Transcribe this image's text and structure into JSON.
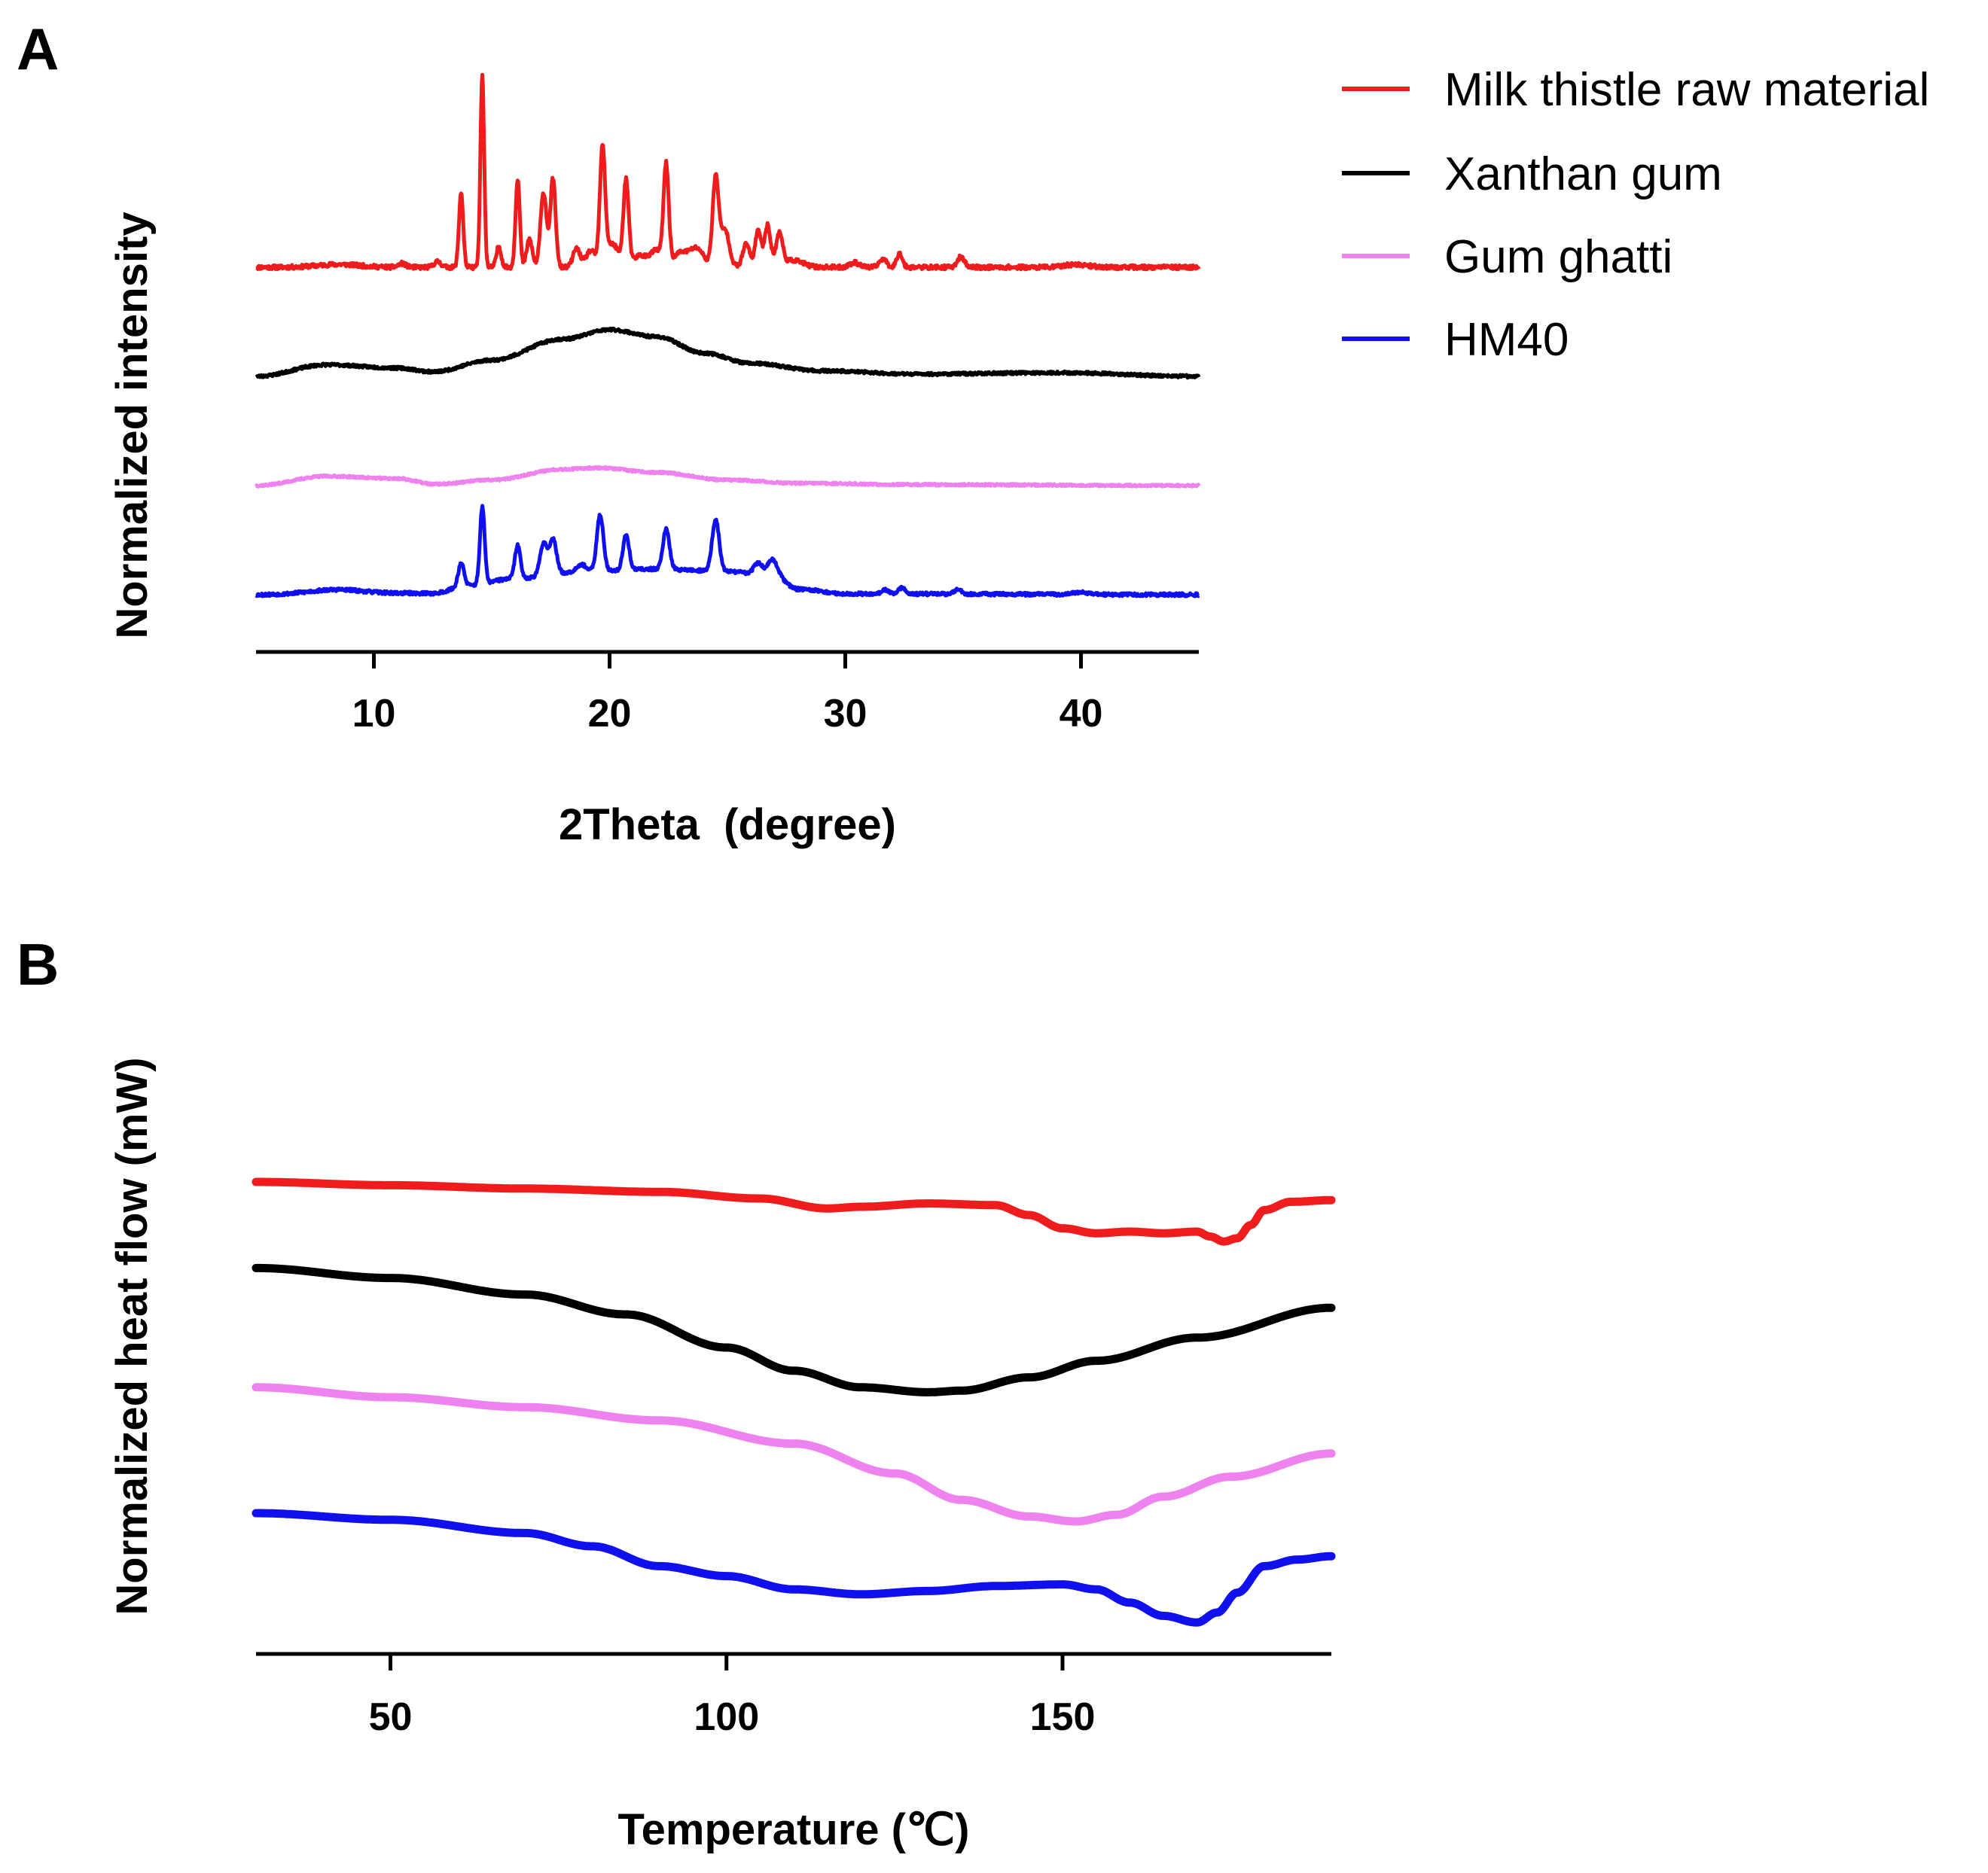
{
  "chart_data": [
    {
      "panel": "A",
      "type": "line",
      "xlabel": "2Theta  (degree)",
      "ylabel": "Normalized intensity",
      "xlim": [
        5,
        45
      ],
      "xticks": [
        10,
        20,
        30,
        40
      ],
      "y_ticks_shown": false,
      "grid": false,
      "legend_position": "top-right (outside)",
      "series": [
        {
          "name": "Milk thistle raw material",
          "color": "#ee1c1c",
          "offset": 3,
          "noise": 0.045,
          "seed": 11,
          "baseline": [
            [
              5,
              0
            ],
            [
              45,
              0
            ]
          ],
          "peaks": [
            [
              8.5,
              0.06,
              0.9
            ],
            [
              11.2,
              0.08,
              0.15
            ],
            [
              12.7,
              0.12,
              0.15
            ],
            [
              13.7,
              1.6,
              0.09
            ],
            [
              14.6,
              4.1,
              0.08
            ],
            [
              15.3,
              0.45,
              0.1
            ],
            [
              16.1,
              1.9,
              0.09
            ],
            [
              16.6,
              0.6,
              0.12
            ],
            [
              17.2,
              1.6,
              0.13
            ],
            [
              17.6,
              1.9,
              0.11
            ],
            [
              18.6,
              0.4,
              0.15
            ],
            [
              19.2,
              0.35,
              0.2
            ],
            [
              19.7,
              2.4,
              0.11
            ],
            [
              20.1,
              0.5,
              0.3
            ],
            [
              20.7,
              1.8,
              0.11
            ],
            [
              21.3,
              0.25,
              0.3
            ],
            [
              22.0,
              0.35,
              0.25
            ],
            [
              22.4,
              2.1,
              0.11
            ],
            [
              23.0,
              0.3,
              0.3
            ],
            [
              23.7,
              0.4,
              0.3
            ],
            [
              24.5,
              1.9,
              0.13
            ],
            [
              24.9,
              0.8,
              0.18
            ],
            [
              25.8,
              0.5,
              0.15
            ],
            [
              26.3,
              0.8,
              0.12
            ],
            [
              26.7,
              0.9,
              0.13
            ],
            [
              27.2,
              0.7,
              0.14
            ],
            [
              27.8,
              0.15,
              0.4
            ],
            [
              30.4,
              0.1,
              0.2
            ],
            [
              31.6,
              0.18,
              0.15
            ],
            [
              32.3,
              0.3,
              0.12
            ],
            [
              34.9,
              0.22,
              0.15
            ],
            [
              39.8,
              0.06,
              0.5
            ]
          ]
        },
        {
          "name": "Xanthan gum",
          "color": "#000000",
          "offset": 2,
          "noise": 0.03,
          "seed": 23,
          "baseline": [
            [
              5,
              0
            ],
            [
              8,
              0.25
            ],
            [
              11,
              0.18
            ],
            [
              12.5,
              0.1
            ],
            [
              15,
              0.35
            ],
            [
              18,
              0.8
            ],
            [
              20,
              1.0
            ],
            [
              22,
              0.85
            ],
            [
              24,
              0.5
            ],
            [
              26,
              0.28
            ],
            [
              29,
              0.12
            ],
            [
              33,
              0.05
            ],
            [
              39,
              0.08
            ],
            [
              45,
              0.0
            ]
          ],
          "peaks": []
        },
        {
          "name": "Gum ghatti",
          "color": "#ee82ee",
          "offset": 1,
          "noise": 0.022,
          "seed": 37,
          "baseline": [
            [
              5,
              0
            ],
            [
              8,
              0.2
            ],
            [
              11,
              0.15
            ],
            [
              12.6,
              0.03
            ],
            [
              15,
              0.12
            ],
            [
              18,
              0.35
            ],
            [
              19.5,
              0.38
            ],
            [
              22,
              0.28
            ],
            [
              25,
              0.12
            ],
            [
              28,
              0.05
            ],
            [
              33,
              0.02
            ],
            [
              45,
              0.0
            ]
          ],
          "peaks": []
        },
        {
          "name": "HM40",
          "color": "#1010ee",
          "offset": 0,
          "noise": 0.035,
          "seed": 53,
          "baseline": [
            [
              5,
              0
            ],
            [
              8,
              0.05
            ],
            [
              12.5,
              0.03
            ],
            [
              14,
              0.2
            ],
            [
              16,
              0.35
            ],
            [
              19,
              0.5
            ],
            [
              22,
              0.55
            ],
            [
              25,
              0.5
            ],
            [
              27,
              0.4
            ],
            [
              28,
              0.12
            ],
            [
              30,
              0.02
            ],
            [
              45,
              0.0
            ]
          ],
          "peaks": [
            [
              8.5,
              0.06,
              0.9
            ],
            [
              13.7,
              0.5,
              0.12
            ],
            [
              14.6,
              1.65,
              0.1
            ],
            [
              16.1,
              0.7,
              0.12
            ],
            [
              17.2,
              0.7,
              0.15
            ],
            [
              17.6,
              0.75,
              0.15
            ],
            [
              18.8,
              0.15,
              0.2
            ],
            [
              19.6,
              1.2,
              0.14
            ],
            [
              20.7,
              0.75,
              0.13
            ],
            [
              22.4,
              0.85,
              0.14
            ],
            [
              24.5,
              1.1,
              0.15
            ],
            [
              26.3,
              0.25,
              0.18
            ],
            [
              26.9,
              0.35,
              0.2
            ],
            [
              31.7,
              0.08,
              0.15
            ],
            [
              32.4,
              0.13,
              0.15
            ],
            [
              34.8,
              0.1,
              0.15
            ],
            [
              40.0,
              0.04,
              0.4
            ]
          ]
        }
      ]
    },
    {
      "panel": "B",
      "type": "line",
      "xlabel": "Temperature (℃)",
      "ylabel": "Normalized heat flow (mW)",
      "xlim": [
        30,
        190
      ],
      "xticks": [
        50,
        100,
        150
      ],
      "y_ticks_shown": false,
      "grid": false,
      "series": [
        {
          "name": "Milk thistle raw material",
          "color": "#ee1c1c",
          "points": [
            [
              30,
              10.0
            ],
            [
              50,
              9.9
            ],
            [
              70,
              9.8
            ],
            [
              90,
              9.7
            ],
            [
              105,
              9.5
            ],
            [
              115,
              9.2
            ],
            [
              120,
              9.25
            ],
            [
              130,
              9.35
            ],
            [
              140,
              9.3
            ],
            [
              145,
              9.0
            ],
            [
              150,
              8.6
            ],
            [
              155,
              8.45
            ],
            [
              160,
              8.5
            ],
            [
              165,
              8.45
            ],
            [
              170,
              8.5
            ],
            [
              172,
              8.35
            ],
            [
              174,
              8.2
            ],
            [
              176,
              8.3
            ],
            [
              178,
              8.7
            ],
            [
              180,
              9.15
            ],
            [
              184,
              9.4
            ],
            [
              190,
              9.45
            ]
          ]
        },
        {
          "name": "Xanthan gum",
          "color": "#000000",
          "points": [
            [
              30,
              7.4
            ],
            [
              50,
              7.1
            ],
            [
              70,
              6.6
            ],
            [
              85,
              6.0
            ],
            [
              100,
              5.0
            ],
            [
              110,
              4.3
            ],
            [
              120,
              3.8
            ],
            [
              130,
              3.65
            ],
            [
              135,
              3.7
            ],
            [
              145,
              4.1
            ],
            [
              155,
              4.6
            ],
            [
              170,
              5.3
            ],
            [
              190,
              6.2
            ]
          ]
        },
        {
          "name": "Gum ghatti",
          "color": "#ee82ee",
          "points": [
            [
              30,
              3.8
            ],
            [
              50,
              3.5
            ],
            [
              70,
              3.2
            ],
            [
              90,
              2.8
            ],
            [
              110,
              2.1
            ],
            [
              125,
              1.2
            ],
            [
              135,
              0.4
            ],
            [
              145,
              -0.1
            ],
            [
              152,
              -0.25
            ],
            [
              158,
              -0.05
            ],
            [
              165,
              0.5
            ],
            [
              175,
              1.1
            ],
            [
              190,
              1.8
            ]
          ]
        },
        {
          "name": "HM40",
          "color": "#1010ee",
          "points": [
            [
              30,
              0.0
            ],
            [
              50,
              -0.2
            ],
            [
              70,
              -0.6
            ],
            [
              80,
              -1.0
            ],
            [
              90,
              -1.6
            ],
            [
              100,
              -1.9
            ],
            [
              110,
              -2.3
            ],
            [
              120,
              -2.45
            ],
            [
              130,
              -2.35
            ],
            [
              140,
              -2.2
            ],
            [
              150,
              -2.15
            ],
            [
              155,
              -2.3
            ],
            [
              160,
              -2.7
            ],
            [
              165,
              -3.1
            ],
            [
              170,
              -3.3
            ],
            [
              173,
              -3.0
            ],
            [
              176,
              -2.4
            ],
            [
              180,
              -1.6
            ],
            [
              185,
              -1.4
            ],
            [
              190,
              -1.3
            ]
          ]
        }
      ]
    }
  ],
  "panels": {
    "a_label": "A",
    "b_label": "B"
  },
  "legend": {
    "items": [
      {
        "label": "Milk thistle raw material",
        "color": "#ee1c1c"
      },
      {
        "label": "Xanthan gum",
        "color": "#000000"
      },
      {
        "label": "Gum ghatti",
        "color": "#ee82ee"
      },
      {
        "label": "HM40",
        "color": "#1010ee"
      }
    ]
  }
}
